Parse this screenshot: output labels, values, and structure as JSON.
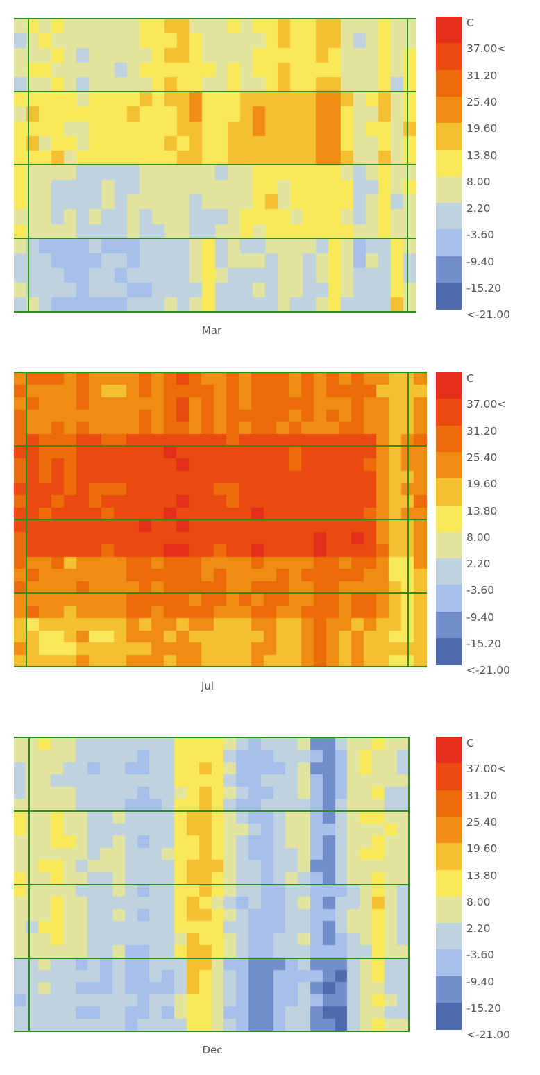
{
  "legend": {
    "unit": "C",
    "labels": [
      "37.00<",
      "31.20",
      "25.40",
      "19.60",
      "13.80",
      "8.00",
      "2.20",
      "-3.60",
      "-9.40",
      "-15.20",
      "<-21.00"
    ],
    "colors": [
      "#e4301a",
      "#e84a10",
      "#ec6c0a",
      "#ef8c14",
      "#f5bf32",
      "#f8e85a",
      "#e2e39e",
      "#bfd2df",
      "#a6bfeb",
      "#728fcc",
      "#4f6aad"
    ]
  },
  "chart_data": [
    {
      "type": "heatmap",
      "xlabel": "Mar",
      "color_scale": {
        "unit": "C",
        "breaks": [
          37.0,
          31.2,
          25.4,
          19.6,
          13.8,
          8.0,
          2.2,
          -3.6,
          -9.4,
          -15.2,
          -21.0
        ]
      },
      "rows": 20,
      "cols": 32,
      "values_description_ranges": [
        [
          2,
          8,
          8,
          10,
          6,
          3,
          4,
          6,
          3,
          5,
          8,
          10,
          12,
          14,
          8,
          6,
          4,
          8,
          6,
          9,
          10,
          14,
          12,
          10,
          16,
          14,
          4,
          2,
          6,
          12,
          4,
          10
        ],
        [
          10,
          12,
          10,
          12,
          9,
          8,
          10,
          11,
          12,
          14,
          12,
          12,
          14,
          16,
          18,
          12,
          10,
          14,
          18,
          20,
          16,
          18,
          14,
          16,
          22,
          24,
          12,
          6,
          8,
          16,
          6,
          12
        ],
        [
          8,
          6,
          4,
          2,
          1,
          0,
          2,
          1,
          -1,
          2,
          1,
          3,
          4,
          6,
          4,
          2,
          3,
          6,
          8,
          10,
          12,
          10,
          8,
          10,
          12,
          10,
          8,
          2,
          4,
          10,
          2,
          6
        ],
        [
          2,
          0,
          -2,
          -3,
          -4,
          -5,
          -4,
          -3,
          -4,
          -2,
          -3,
          -2,
          0,
          -1,
          2,
          12,
          0,
          2,
          1,
          3,
          2,
          4,
          2,
          1,
          3,
          12,
          4,
          -4,
          2,
          0,
          12,
          2
        ]
      ]
    },
    {
      "type": "heatmap",
      "xlabel": "Jul",
      "color_scale": {
        "unit": "C",
        "breaks": [
          37.0,
          31.2,
          25.4,
          19.6,
          13.8,
          8.0,
          2.2,
          -3.6,
          -9.4,
          -15.2,
          -21.0
        ]
      },
      "rows": 24,
      "cols": 33,
      "values_description_ranges": [
        [
          26,
          27,
          24,
          25,
          23,
          26,
          24,
          22,
          21,
          25,
          27,
          25,
          28,
          30,
          26,
          27,
          24,
          25,
          26,
          28,
          27,
          26,
          25,
          27,
          24,
          26,
          25,
          28,
          24,
          20,
          16,
          18,
          21
        ],
        [
          30,
          33,
          30,
          32,
          31,
          34,
          32,
          30,
          31,
          33,
          35,
          34,
          36,
          37,
          35,
          34,
          33,
          32,
          33,
          35,
          34,
          33,
          32,
          34,
          36,
          35,
          33,
          34,
          32,
          22,
          18,
          20,
          24
        ],
        [
          32,
          34,
          31,
          33,
          32,
          35,
          33,
          32,
          33,
          34,
          36,
          35,
          37,
          38,
          36,
          34,
          33,
          33,
          34,
          36,
          35,
          34,
          34,
          35,
          37,
          36,
          34,
          35,
          33,
          24,
          16,
          18,
          24
        ],
        [
          24,
          26,
          22,
          24,
          21,
          24,
          22,
          23,
          24,
          25,
          27,
          26,
          28,
          29,
          27,
          25,
          24,
          23,
          25,
          27,
          26,
          25,
          24,
          26,
          28,
          27,
          25,
          26,
          24,
          20,
          14,
          12,
          18
        ],
        [
          18,
          16,
          14,
          15,
          16,
          20,
          16,
          15,
          16,
          18,
          20,
          19,
          21,
          22,
          20,
          18,
          17,
          16,
          18,
          20,
          19,
          18,
          17,
          24,
          26,
          22,
          18,
          20,
          19,
          16,
          14,
          12,
          16
        ]
      ]
    },
    {
      "type": "heatmap",
      "xlabel": "Dec",
      "color_scale": {
        "unit": "C",
        "breaks": [
          37.0,
          31.2,
          25.4,
          19.6,
          13.8,
          8.0,
          2.2,
          -3.6,
          -9.4,
          -15.2,
          -21.0
        ]
      },
      "rows": 24,
      "cols": 32,
      "values_description_ranges": [
        [
          2,
          4,
          6,
          4,
          2,
          0,
          -2,
          -1,
          1,
          -3,
          -4,
          -2,
          0,
          10,
          12,
          14,
          10,
          2,
          -3,
          -6,
          -4,
          -2,
          0,
          2,
          -10,
          -12,
          -4,
          4,
          6,
          8,
          4,
          2
        ],
        [
          8,
          6,
          8,
          10,
          6,
          4,
          2,
          2,
          4,
          0,
          -2,
          0,
          2,
          12,
          14,
          16,
          12,
          4,
          0,
          -4,
          -6,
          -2,
          2,
          4,
          -8,
          -10,
          -2,
          6,
          8,
          10,
          6,
          4
        ],
        [
          6,
          4,
          6,
          8,
          4,
          2,
          0,
          0,
          2,
          -2,
          -3,
          -1,
          0,
          10,
          14,
          14,
          10,
          2,
          -2,
          -4,
          -6,
          -4,
          0,
          2,
          -6,
          -8,
          -4,
          2,
          4,
          12,
          4,
          2
        ],
        [
          -2,
          0,
          2,
          0,
          -2,
          -3,
          -4,
          -3,
          -2,
          -4,
          -5,
          -3,
          -4,
          0,
          12,
          12,
          4,
          -2,
          -6,
          -10,
          -12,
          -8,
          -4,
          -2,
          -10,
          -14,
          -16,
          -2,
          4,
          10,
          2,
          0
        ]
      ]
    }
  ]
}
